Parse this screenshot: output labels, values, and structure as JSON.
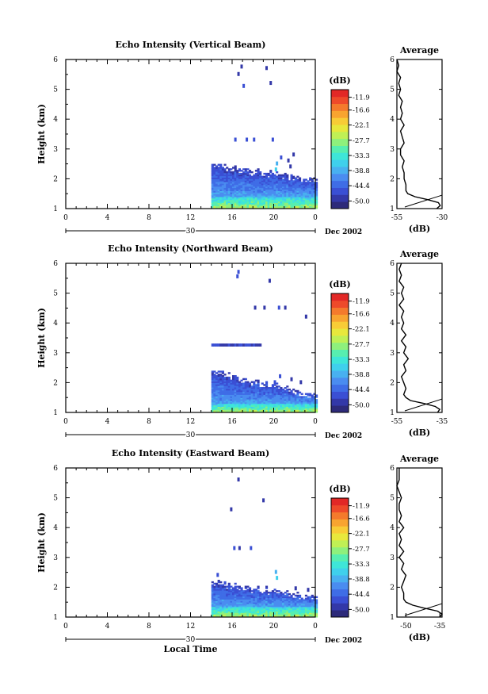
{
  "chart_data": [
    {
      "type": "heatmap",
      "title": "Echo Intensity (Vertical Beam)",
      "ylabel": "Height (km)",
      "xlabel": "",
      "x_ticks": [
        "0",
        "4",
        "8",
        "12",
        "16",
        "20",
        "0"
      ],
      "xlim": [
        0,
        24
      ],
      "ylim": [
        1,
        6
      ],
      "y_ticks": [
        "1",
        "2",
        "3",
        "4",
        "5",
        "6"
      ],
      "date_label": "30",
      "month_label": "Dec 2002",
      "colorbar": {
        "unit": "(dB)",
        "ticks": [
          "-11.9",
          "-16.6",
          "-22.1",
          "-27.7",
          "-33.3",
          "-38.8",
          "-44.4",
          "-50.0"
        ],
        "range": [
          -52.8,
          -9.1
        ]
      },
      "echo_layer": {
        "start_hour": 14,
        "end_hour": 24,
        "base_top_km": 2.5,
        "base_floor_km": 2.0,
        "core_top_km": 1.4,
        "sparse_points": [
          [
            16.5,
            5.5,
            -48
          ],
          [
            16.8,
            5.75,
            -48
          ],
          [
            17.0,
            5.1,
            -47
          ],
          [
            19.2,
            5.7,
            -49
          ],
          [
            19.6,
            5.2,
            -48
          ],
          [
            16.2,
            3.3,
            -46
          ],
          [
            17.3,
            3.3,
            -47
          ],
          [
            18.0,
            3.3,
            -47
          ],
          [
            19.8,
            3.3,
            -46
          ],
          [
            20.6,
            2.7,
            -46
          ],
          [
            21.3,
            2.6,
            -48
          ],
          [
            21.8,
            2.8,
            -49
          ],
          [
            21.5,
            2.4,
            -48
          ],
          [
            20.2,
            2.5,
            -38
          ],
          [
            20.1,
            2.3,
            -36
          ]
        ]
      },
      "average_profile": {
        "title": "Average",
        "xlabel": "(dB)",
        "x_ticks": [
          "-55",
          "-30"
        ],
        "xlim": [
          -55,
          -30
        ],
        "height_km": [
          1.0,
          1.1,
          1.2,
          1.3,
          1.4,
          1.5,
          1.6,
          1.8,
          2.0,
          2.2,
          2.4,
          2.6,
          2.8,
          3.0,
          3.2,
          3.4,
          3.6,
          3.8,
          4.0,
          4.2,
          4.4,
          4.6,
          4.8,
          5.0,
          5.2,
          5.4,
          5.6,
          5.8,
          6.0
        ],
        "intensity_db": [
          -33,
          -31,
          -32,
          -38,
          -45,
          -49,
          -50,
          -50,
          -51,
          -51,
          -52,
          -51,
          -53,
          -53,
          -51,
          -52,
          -53,
          -51,
          -53,
          -52,
          -53,
          -52,
          -54,
          -53,
          -54,
          -53,
          -55,
          -54,
          -55
        ]
      }
    },
    {
      "type": "heatmap",
      "title": "Echo Intensity (Northward Beam)",
      "ylabel": "Height (km)",
      "xlabel": "",
      "x_ticks": [
        "0",
        "4",
        "8",
        "12",
        "16",
        "20",
        "0"
      ],
      "xlim": [
        0,
        24
      ],
      "ylim": [
        1,
        6
      ],
      "y_ticks": [
        "1",
        "2",
        "3",
        "4",
        "5",
        "6"
      ],
      "date_label": "30",
      "month_label": "Dec 2002",
      "colorbar": {
        "unit": "(dB)",
        "ticks": [
          "-11.9",
          "-16.6",
          "-22.1",
          "-27.7",
          "-33.3",
          "-38.8",
          "-44.4",
          "-50.0"
        ],
        "range": [
          -52.8,
          -9.1
        ]
      },
      "echo_layer": {
        "start_hour": 14,
        "end_hour": 24,
        "base_top_km": 2.4,
        "base_floor_km": 1.6,
        "core_top_km": 1.3,
        "sparse_points": [
          [
            16.5,
            5.7,
            -47
          ],
          [
            16.4,
            5.55,
            -46
          ],
          [
            19.5,
            5.4,
            -48
          ],
          [
            18.1,
            4.5,
            -48
          ],
          [
            19.0,
            4.5,
            -48
          ],
          [
            20.4,
            4.5,
            -47
          ],
          [
            21.0,
            4.5,
            -48
          ],
          [
            23.0,
            4.2,
            -48
          ],
          [
            20.0,
            2.0,
            -46
          ],
          [
            20.5,
            2.2,
            -47
          ],
          [
            21.6,
            2.1,
            -48
          ],
          [
            22.5,
            2.0,
            -49
          ]
        ],
        "band": {
          "from_hour": 14,
          "to_hour": 18.7,
          "height_km": 3.25
        }
      },
      "average_profile": {
        "title": "Average",
        "xlabel": "(dB)",
        "x_ticks": [
          "-55",
          "-35"
        ],
        "xlim": [
          -55,
          -35
        ],
        "height_km": [
          1.0,
          1.1,
          1.2,
          1.3,
          1.4,
          1.5,
          1.6,
          1.8,
          2.0,
          2.2,
          2.4,
          2.6,
          2.8,
          3.0,
          3.2,
          3.4,
          3.6,
          3.8,
          4.0,
          4.2,
          4.4,
          4.6,
          4.8,
          5.0,
          5.2,
          5.4,
          5.6,
          5.8,
          6.0
        ],
        "intensity_db": [
          -37,
          -36,
          -38,
          -43,
          -49,
          -51,
          -52,
          -51,
          -52,
          -53,
          -51,
          -52,
          -50,
          -52,
          -51,
          -53,
          -51,
          -53,
          -52,
          -53,
          -52,
          -54,
          -52,
          -53,
          -52,
          -54,
          -53,
          -54,
          -53
        ]
      }
    },
    {
      "type": "heatmap",
      "title": "Echo Intensity (Eastward Beam)",
      "ylabel": "Height (km)",
      "xlabel": "Local Time",
      "x_ticks": [
        "0",
        "4",
        "8",
        "12",
        "16",
        "20",
        "0"
      ],
      "xlim": [
        0,
        24
      ],
      "ylim": [
        1,
        6
      ],
      "y_ticks": [
        "1",
        "2",
        "3",
        "4",
        "5",
        "6"
      ],
      "date_label": "30",
      "month_label": "Dec 2002",
      "colorbar": {
        "unit": "(dB)",
        "ticks": [
          "-11.9",
          "-16.6",
          "-22.1",
          "-27.7",
          "-33.3",
          "-38.8",
          "-44.4",
          "-50.0"
        ],
        "range": [
          -52.8,
          -9.1
        ]
      },
      "echo_layer": {
        "start_hour": 14,
        "end_hour": 24,
        "base_top_km": 2.2,
        "base_floor_km": 1.7,
        "core_top_km": 1.35,
        "sparse_points": [
          [
            16.1,
            3.3,
            -47
          ],
          [
            16.6,
            3.3,
            -48
          ],
          [
            17.7,
            3.3,
            -47
          ],
          [
            16.5,
            5.6,
            -48
          ],
          [
            15.8,
            4.6,
            -48
          ],
          [
            18.9,
            4.9,
            -48
          ],
          [
            20.1,
            2.5,
            -38
          ],
          [
            20.2,
            2.3,
            -36
          ],
          [
            14.5,
            2.4,
            -46
          ],
          [
            22.0,
            1.95,
            -48
          ],
          [
            23.2,
            1.9,
            -48
          ]
        ]
      },
      "average_profile": {
        "title": "Average",
        "xlabel": "(dB)",
        "x_ticks": [
          "-50",
          "-35"
        ],
        "xlim": [
          -54,
          -34
        ],
        "height_km": [
          1.0,
          1.1,
          1.2,
          1.3,
          1.4,
          1.5,
          1.6,
          1.8,
          2.0,
          2.2,
          2.4,
          2.6,
          2.8,
          3.0,
          3.2,
          3.4,
          3.6,
          3.8,
          4.0,
          4.2,
          4.4,
          4.6,
          4.8,
          5.0,
          5.2,
          5.4,
          5.6,
          5.8,
          6.0
        ],
        "intensity_db": [
          -35,
          -34,
          -36,
          -42,
          -47,
          -50,
          -51,
          -51,
          -52,
          -51,
          -50,
          -52,
          -51,
          -53,
          -51,
          -53,
          -52,
          -53,
          -51,
          -53,
          -52,
          -53,
          -53,
          -52,
          -53,
          -54,
          -53,
          -53,
          -53
        ]
      }
    }
  ]
}
